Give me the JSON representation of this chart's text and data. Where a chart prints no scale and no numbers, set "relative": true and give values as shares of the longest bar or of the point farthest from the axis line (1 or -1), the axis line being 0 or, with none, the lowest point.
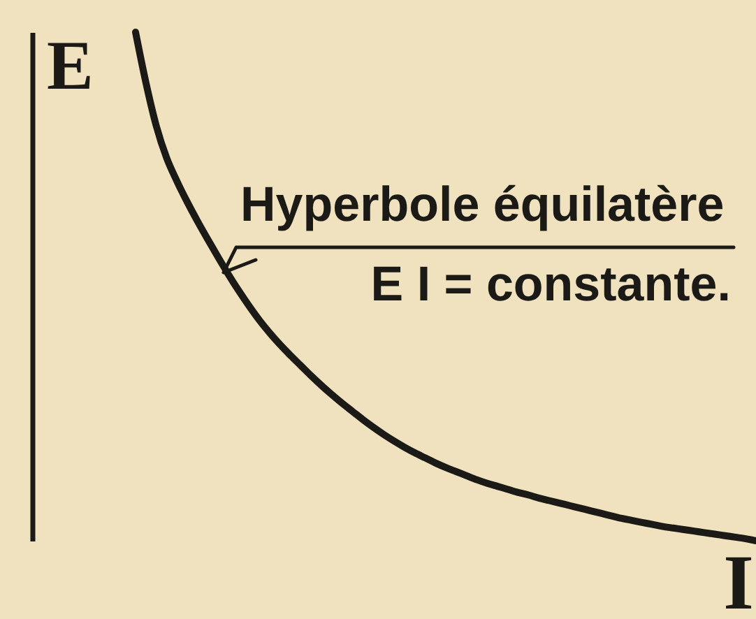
{
  "chart_data": {
    "type": "line",
    "relative": true,
    "xlabel": "I",
    "ylabel": "E",
    "categories": [
      null,
      null,
      null,
      null,
      null,
      null,
      null,
      null,
      null,
      null,
      null,
      null,
      null,
      null,
      null,
      null,
      null,
      null,
      null,
      null,
      null,
      null,
      null,
      null,
      null,
      null,
      null,
      null,
      null,
      null,
      null,
      null,
      null,
      null,
      null,
      null,
      null,
      null,
      null,
      null,
      null,
      null,
      null,
      null,
      null,
      null,
      null,
      null,
      null,
      null,
      null,
      null,
      null,
      null,
      null,
      null,
      null,
      null,
      null,
      null,
      null,
      null,
      null,
      null,
      null,
      null,
      null,
      null,
      null,
      null,
      null
    ],
    "values": [
      null,
      null,
      null,
      null,
      null,
      null,
      null,
      null,
      null,
      null,
      1.0,
      0.901,
      0.816,
      0.753,
      0.707,
      0.666,
      0.628,
      0.592,
      0.557,
      0.523,
      0.491,
      0.461,
      0.433,
      0.408,
      0.385,
      0.364,
      0.344,
      0.324,
      0.305,
      0.287,
      0.27,
      0.254,
      0.238,
      0.223,
      0.209,
      0.196,
      0.184,
      0.173,
      0.163,
      0.153,
      0.144,
      0.136,
      0.128,
      0.12,
      0.113,
      0.107,
      0.101,
      0.095,
      0.09,
      0.084,
      0.079,
      0.074,
      0.069,
      0.064,
      0.059,
      0.054,
      0.049,
      0.044,
      0.04,
      0.036,
      0.032,
      0.028,
      0.025,
      0.022,
      0.019,
      0.016,
      0.013,
      0.01,
      0.007,
      0.004,
      0.0
    ],
    "color": "#1c1a17",
    "annotations": [
      "Hyperbole équilatère",
      "E I = constante."
    ]
  }
}
